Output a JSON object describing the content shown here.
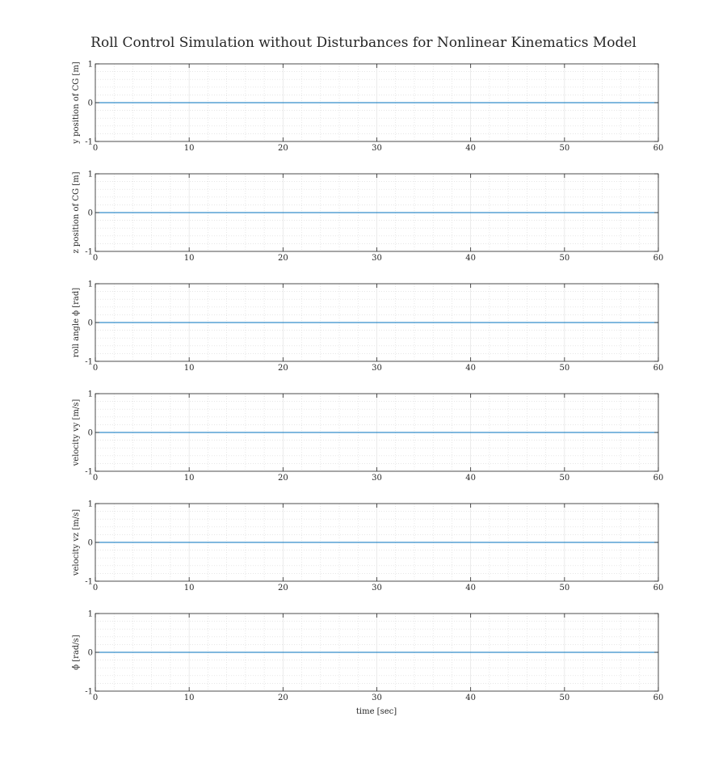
{
  "figure": {
    "title": "Roll Control Simulation without Disturbances for Nonlinear Kinematics Model",
    "xlabel": "time [sec]"
  },
  "chart_data": [
    {
      "type": "line",
      "ylabel": "y position of CG [m]",
      "xlim": [
        0,
        60
      ],
      "ylim": [
        -1,
        1
      ],
      "xticks": [
        0,
        10,
        20,
        30,
        40,
        50,
        60
      ],
      "yticks": [
        -1,
        0,
        1
      ],
      "grid": "major and minor, dotted",
      "series": [
        {
          "color": "#0072bd",
          "x": [
            0,
            60
          ],
          "values": [
            0,
            0
          ]
        }
      ]
    },
    {
      "type": "line",
      "ylabel": "z position of CG [m]",
      "xlim": [
        0,
        60
      ],
      "ylim": [
        -1,
        1
      ],
      "xticks": [
        0,
        10,
        20,
        30,
        40,
        50,
        60
      ],
      "yticks": [
        -1,
        0,
        1
      ],
      "grid": "major and minor, dotted",
      "series": [
        {
          "color": "#0072bd",
          "x": [
            0,
            60
          ],
          "values": [
            0,
            0
          ]
        }
      ]
    },
    {
      "type": "line",
      "ylabel": "roll angle ϕ [rad]",
      "xlim": [
        0,
        60
      ],
      "ylim": [
        -1,
        1
      ],
      "xticks": [
        0,
        10,
        20,
        30,
        40,
        50,
        60
      ],
      "yticks": [
        -1,
        0,
        1
      ],
      "grid": "major and minor, dotted",
      "series": [
        {
          "color": "#0072bd",
          "x": [
            0,
            60
          ],
          "values": [
            0,
            0
          ]
        }
      ]
    },
    {
      "type": "line",
      "ylabel": "velocity vy [m/s]",
      "xlim": [
        0,
        60
      ],
      "ylim": [
        -1,
        1
      ],
      "xticks": [
        0,
        10,
        20,
        30,
        40,
        50,
        60
      ],
      "yticks": [
        -1,
        0,
        1
      ],
      "grid": "major and minor, dotted",
      "series": [
        {
          "color": "#0072bd",
          "x": [
            0,
            60
          ],
          "values": [
            0,
            0
          ]
        }
      ]
    },
    {
      "type": "line",
      "ylabel": "velocity vz [m/s]",
      "xlim": [
        0,
        60
      ],
      "ylim": [
        -1,
        1
      ],
      "xticks": [
        0,
        10,
        20,
        30,
        40,
        50,
        60
      ],
      "yticks": [
        -1,
        0,
        1
      ],
      "grid": "major and minor, dotted",
      "series": [
        {
          "color": "#0072bd",
          "x": [
            0,
            60
          ],
          "values": [
            0,
            0
          ]
        }
      ]
    },
    {
      "type": "line",
      "ylabel": "ϕ̇ [rad/s]",
      "xlim": [
        0,
        60
      ],
      "ylim": [
        -1,
        1
      ],
      "xticks": [
        0,
        10,
        20,
        30,
        40,
        50,
        60
      ],
      "yticks": [
        -1,
        0,
        1
      ],
      "grid": "major and minor, dotted",
      "series": [
        {
          "color": "#0072bd",
          "x": [
            0,
            60
          ],
          "values": [
            0,
            0
          ]
        }
      ]
    }
  ]
}
